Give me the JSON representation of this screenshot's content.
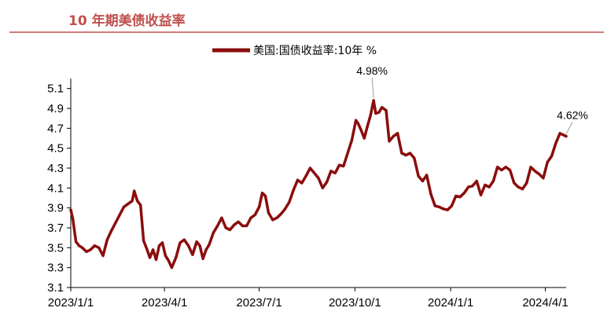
{
  "chart_data": {
    "type": "line",
    "title": "10 年期美债收益率",
    "xlabel": "",
    "ylabel": "",
    "grid": false,
    "legend_position": "top-center",
    "x_tick_labels": [
      "2023/1/1",
      "2023/4/1",
      "2023/7/1",
      "2023/10/1",
      "2024/1/1",
      "2024/4/1"
    ],
    "y_ticks": [
      3.1,
      3.3,
      3.5,
      3.7,
      3.9,
      4.1,
      4.3,
      4.5,
      4.7,
      4.9,
      5.1
    ],
    "y_tick_labels": [
      "3.1",
      "3.3",
      "3.5",
      "3.7",
      "3.9",
      "4.1",
      "4.3",
      "4.5",
      "4.7",
      "4.9",
      "5.1"
    ],
    "ylim": [
      3.1,
      5.2
    ],
    "xlim": [
      "2023-01-01",
      "2024-04-21"
    ],
    "series": [
      {
        "name": "美国:国债收益率:10年 %",
        "color": "#8b0d0d",
        "x": [
          "2023-01-01",
          "2023-01-03",
          "2023-01-06",
          "2023-01-09",
          "2023-01-12",
          "2023-01-16",
          "2023-01-20",
          "2023-01-24",
          "2023-01-28",
          "2023-02-01",
          "2023-02-05",
          "2023-02-09",
          "2023-02-13",
          "2023-02-17",
          "2023-02-21",
          "2023-02-25",
          "2023-03-01",
          "2023-03-03",
          "2023-03-06",
          "2023-03-09",
          "2023-03-12",
          "2023-03-15",
          "2023-03-18",
          "2023-03-21",
          "2023-03-24",
          "2023-03-27",
          "2023-03-30",
          "2023-04-02",
          "2023-04-05",
          "2023-04-08",
          "2023-04-12",
          "2023-04-16",
          "2023-04-20",
          "2023-04-24",
          "2023-04-28",
          "2023-05-02",
          "2023-05-05",
          "2023-05-08",
          "2023-05-11",
          "2023-05-14",
          "2023-05-18",
          "2023-05-22",
          "2023-05-26",
          "2023-05-30",
          "2023-06-03",
          "2023-06-07",
          "2023-06-11",
          "2023-06-15",
          "2023-06-19",
          "2023-06-23",
          "2023-06-27",
          "2023-07-01",
          "2023-07-04",
          "2023-07-07",
          "2023-07-10",
          "2023-07-14",
          "2023-07-18",
          "2023-07-22",
          "2023-07-26",
          "2023-07-30",
          "2023-08-03",
          "2023-08-07",
          "2023-08-11",
          "2023-08-15",
          "2023-08-19",
          "2023-08-23",
          "2023-08-27",
          "2023-08-31",
          "2023-09-04",
          "2023-09-08",
          "2023-09-12",
          "2023-09-16",
          "2023-09-20",
          "2023-09-24",
          "2023-09-28",
          "2023-10-02",
          "2023-10-04",
          "2023-10-07",
          "2023-10-10",
          "2023-10-13",
          "2023-10-16",
          "2023-10-19",
          "2023-10-21",
          "2023-10-24",
          "2023-10-27",
          "2023-10-31",
          "2023-11-03",
          "2023-11-07",
          "2023-11-11",
          "2023-11-15",
          "2023-11-19",
          "2023-11-23",
          "2023-11-27",
          "2023-12-01",
          "2023-12-05",
          "2023-12-09",
          "2023-12-13",
          "2023-12-17",
          "2023-12-21",
          "2023-12-25",
          "2023-12-29",
          "2024-01-02",
          "2024-01-06",
          "2024-01-10",
          "2024-01-14",
          "2024-01-18",
          "2024-01-22",
          "2024-01-26",
          "2024-01-30",
          "2024-02-03",
          "2024-02-07",
          "2024-02-11",
          "2024-02-15",
          "2024-02-19",
          "2024-02-23",
          "2024-02-27",
          "2024-03-02",
          "2024-03-06",
          "2024-03-10",
          "2024-03-14",
          "2024-03-18",
          "2024-03-22",
          "2024-03-26",
          "2024-03-30",
          "2024-04-03",
          "2024-04-07",
          "2024-04-11",
          "2024-04-15",
          "2024-04-21"
        ],
        "y": [
          3.88,
          3.79,
          3.56,
          3.52,
          3.5,
          3.46,
          3.48,
          3.52,
          3.5,
          3.42,
          3.58,
          3.67,
          3.75,
          3.83,
          3.91,
          3.94,
          3.97,
          4.07,
          3.97,
          3.93,
          3.57,
          3.49,
          3.4,
          3.48,
          3.38,
          3.52,
          3.55,
          3.42,
          3.37,
          3.3,
          3.4,
          3.55,
          3.58,
          3.52,
          3.43,
          3.56,
          3.52,
          3.39,
          3.48,
          3.53,
          3.65,
          3.72,
          3.8,
          3.7,
          3.68,
          3.73,
          3.76,
          3.72,
          3.72,
          3.8,
          3.83,
          3.91,
          4.05,
          4.02,
          3.85,
          3.78,
          3.8,
          3.84,
          3.89,
          3.96,
          4.08,
          4.18,
          4.15,
          4.22,
          4.3,
          4.25,
          4.2,
          4.1,
          4.16,
          4.27,
          4.25,
          4.33,
          4.32,
          4.45,
          4.58,
          4.78,
          4.75,
          4.68,
          4.6,
          4.72,
          4.83,
          4.98,
          4.85,
          4.86,
          4.91,
          4.88,
          4.57,
          4.62,
          4.65,
          4.45,
          4.43,
          4.45,
          4.4,
          4.22,
          4.17,
          4.23,
          4.04,
          3.92,
          3.91,
          3.89,
          3.88,
          3.92,
          4.02,
          4.01,
          4.05,
          4.11,
          4.12,
          4.17,
          4.03,
          4.13,
          4.11,
          4.17,
          4.31,
          4.28,
          4.31,
          4.28,
          4.15,
          4.11,
          4.09,
          4.15,
          4.31,
          4.27,
          4.24,
          4.2,
          4.36,
          4.42,
          4.55,
          4.65,
          4.62
        ]
      }
    ],
    "annotations": [
      {
        "date": "2023-10-19",
        "value": 4.98,
        "label": "4.98%"
      },
      {
        "date": "2024-04-21",
        "value": 4.62,
        "label": "4.62%"
      }
    ]
  }
}
